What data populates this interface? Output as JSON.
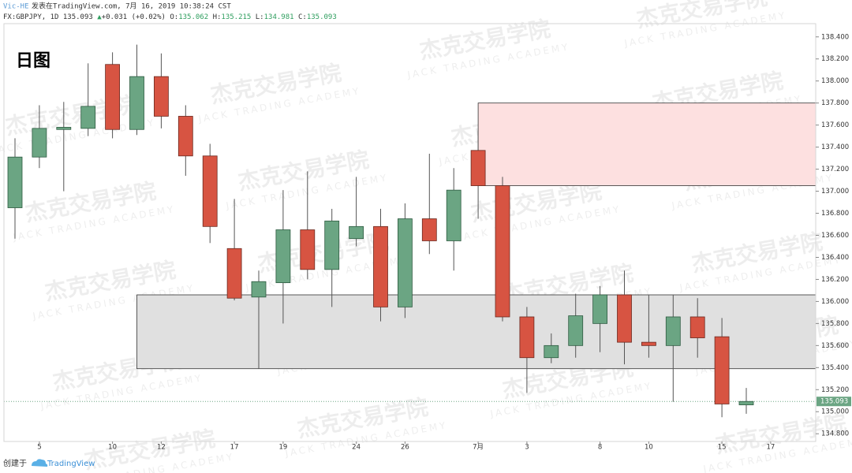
{
  "chart_data": {
    "type": "candlestick",
    "author": "Vic-HE",
    "published": "发表在TradingView.com, 7月 16, 2019 10:38:24 CST",
    "legend": {
      "symbol": "FX:GBPJPY, 1D",
      "last": "135.093",
      "arrow": "▲",
      "change": "+0.031 (+0.02%)",
      "o_label": "O:",
      "o": "135.062",
      "h_label": "H:",
      "h": "135.215",
      "l_label": "L:",
      "l": "134.981",
      "c_label": "C:",
      "c": "135.093"
    },
    "title": "日图",
    "watermark": {
      "title": "杰克交易学院",
      "subtitle": "JACK TRADING ACADEMY"
    },
    "footer": {
      "created": "创建于",
      "brand": "TradingView"
    },
    "categories": [
      null,
      "5",
      null,
      null,
      "10",
      null,
      "12",
      null,
      null,
      "17",
      null,
      "19",
      null,
      null,
      "24",
      null,
      "26",
      null,
      null,
      "7月",
      null,
      "3",
      null,
      null,
      "8",
      null,
      "10",
      null,
      null,
      "15",
      null,
      "17"
    ],
    "open": [
      136.85,
      137.31,
      137.56,
      137.57,
      138.15,
      137.56,
      138.04,
      137.68,
      137.32,
      136.48,
      136.04,
      136.17,
      136.65,
      136.29,
      136.57,
      136.68,
      135.95,
      136.75,
      136.55,
      137.37,
      137.05,
      135.86,
      135.49,
      135.6,
      135.8,
      136.06,
      135.63,
      135.6,
      135.86,
      135.68,
      135.062,
      null
    ],
    "high": [
      137.48,
      137.78,
      137.81,
      138.16,
      138.26,
      138.33,
      138.25,
      137.78,
      137.43,
      136.93,
      136.28,
      137.01,
      137.18,
      136.84,
      137.13,
      136.84,
      136.89,
      137.34,
      137.21,
      137.55,
      137.13,
      135.95,
      135.71,
      136.07,
      136.14,
      136.28,
      136.06,
      136.06,
      136.03,
      135.85,
      135.215,
      null
    ],
    "low": [
      136.57,
      137.21,
      137.0,
      137.5,
      137.48,
      137.51,
      137.57,
      137.14,
      136.53,
      136.01,
      135.39,
      135.8,
      136.2,
      135.95,
      136.5,
      135.82,
      135.85,
      136.43,
      136.28,
      136.75,
      135.82,
      135.17,
      135.44,
      135.49,
      135.54,
      135.43,
      135.49,
      135.09,
      135.49,
      134.95,
      134.981,
      null
    ],
    "close": [
      137.31,
      137.57,
      137.58,
      137.77,
      137.56,
      138.04,
      137.68,
      137.32,
      136.68,
      136.03,
      136.18,
      136.65,
      136.29,
      136.73,
      136.68,
      135.95,
      136.75,
      136.55,
      137.01,
      137.05,
      135.86,
      135.49,
      135.6,
      135.87,
      136.06,
      135.63,
      135.6,
      135.86,
      135.67,
      135.07,
      135.093,
      null
    ],
    "up_color": "#6ba583",
    "down_color": "#d75442",
    "zones": [
      {
        "start": 19,
        "top": 137.8,
        "bottom": 137.05,
        "color": "#fde0e0"
      },
      {
        "start": 5,
        "top": 136.06,
        "bottom": 135.39,
        "color": "#e0e0e0"
      }
    ],
    "price_line": {
      "value": 135.093,
      "label": "135.093"
    },
    "ylim": [
      134.73,
      138.52
    ],
    "yticks": [
      {
        "value": 134.8,
        "label": "134.800"
      },
      {
        "value": 135.0,
        "label": "135.000"
      },
      {
        "value": 135.2,
        "label": "135.200"
      },
      {
        "value": 135.4,
        "label": "135.400"
      },
      {
        "value": 135.6,
        "label": "135.600"
      },
      {
        "value": 135.8,
        "label": "135.800"
      },
      {
        "value": 136.0,
        "label": "136.000"
      },
      {
        "value": 136.2,
        "label": "136.200"
      },
      {
        "value": 136.4,
        "label": "136.400"
      },
      {
        "value": 136.6,
        "label": "136.600"
      },
      {
        "value": 136.8,
        "label": "136.800"
      },
      {
        "value": 137.0,
        "label": "137.000"
      },
      {
        "value": 137.2,
        "label": "137.200"
      },
      {
        "value": 137.4,
        "label": "137.400"
      },
      {
        "value": 137.6,
        "label": "137.600"
      },
      {
        "value": 137.8,
        "label": "137.800"
      },
      {
        "value": 138.0,
        "label": "138.000"
      },
      {
        "value": 138.2,
        "label": "138.200"
      },
      {
        "value": 138.4,
        "label": "138.400"
      }
    ]
  }
}
